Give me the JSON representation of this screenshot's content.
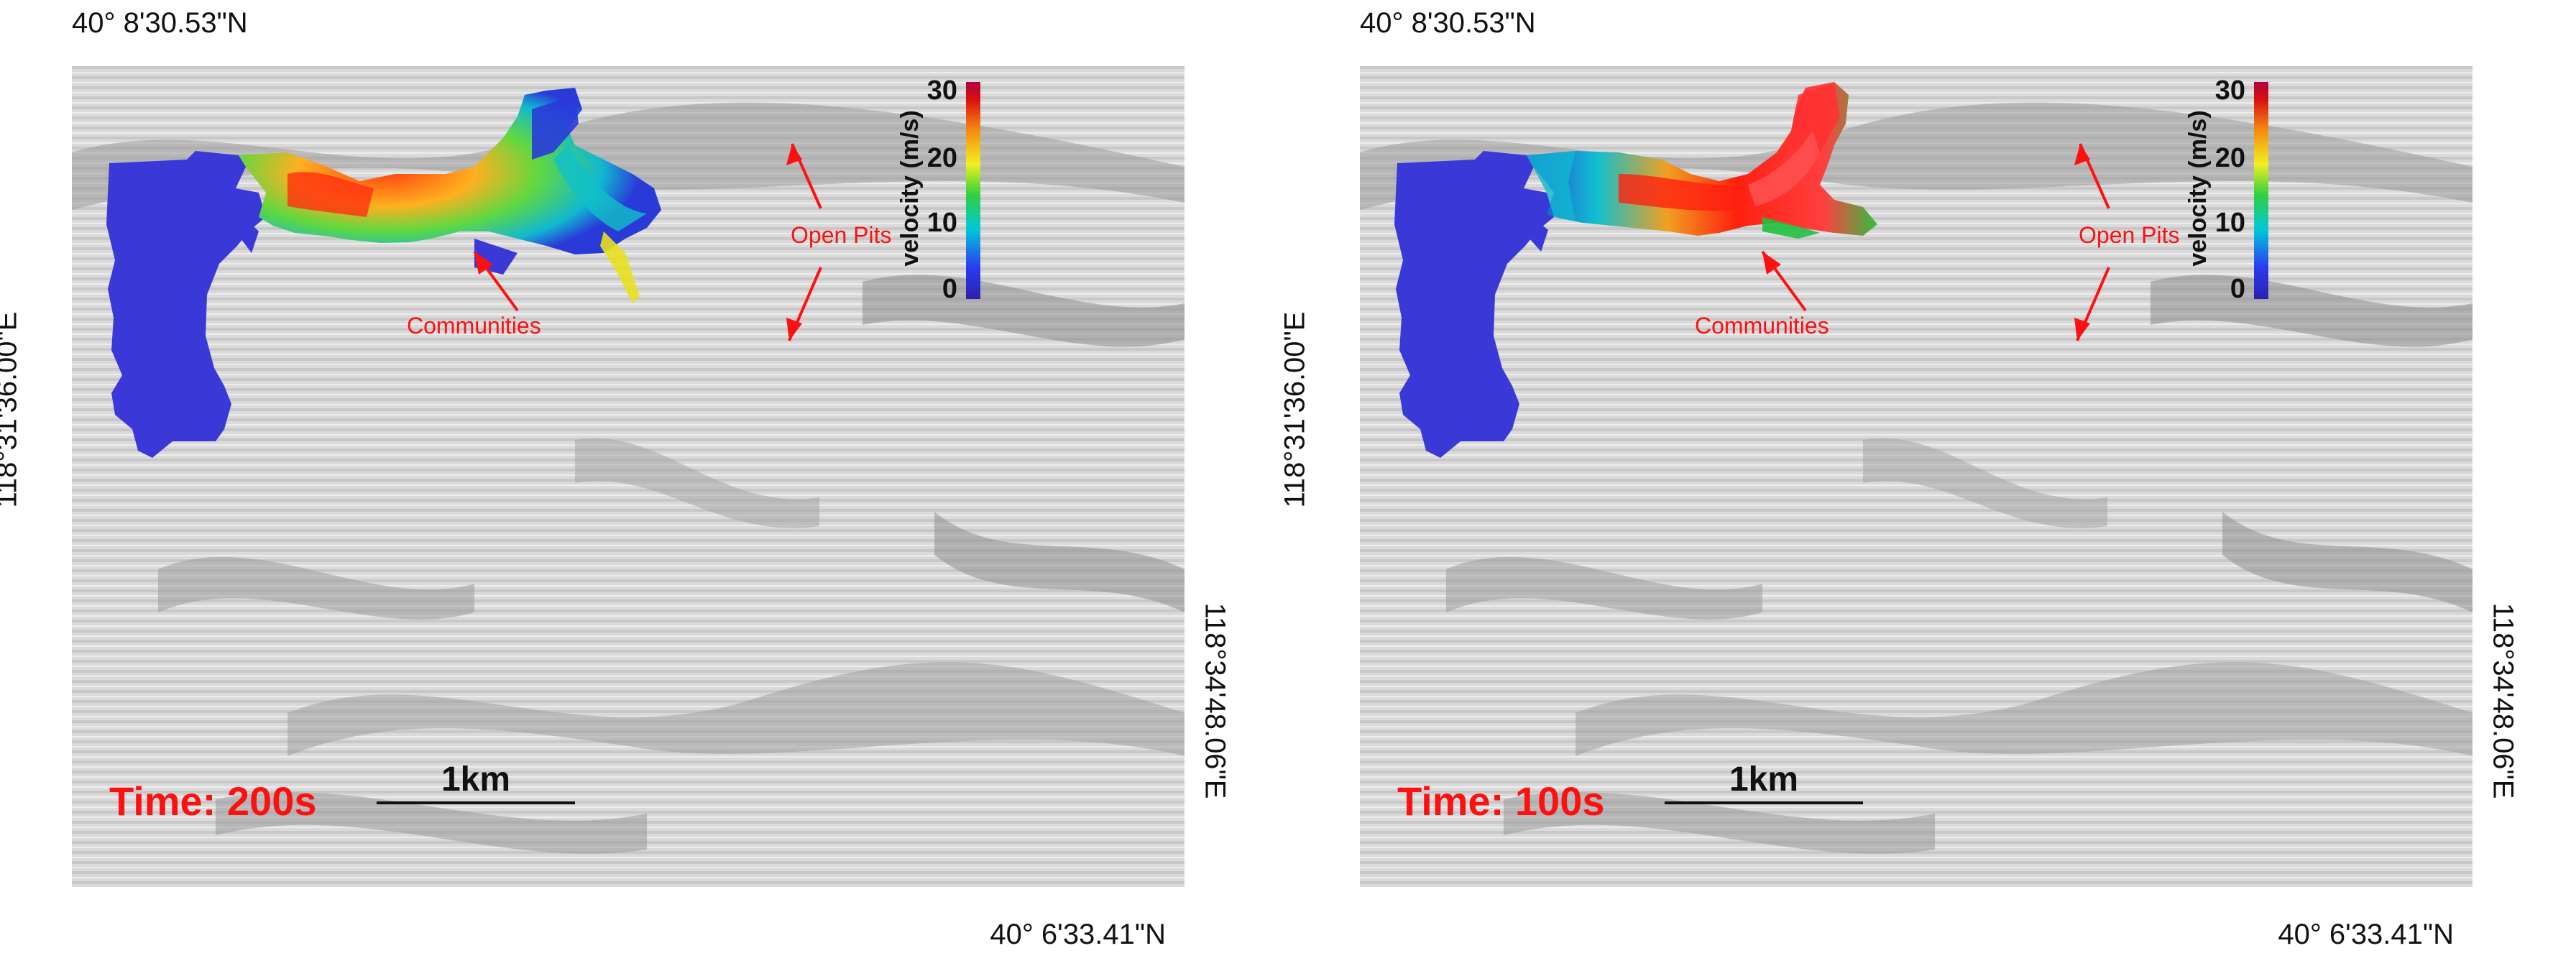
{
  "panels": [
    {
      "coord_top": "40° 8'30.53\"N",
      "coord_left": "118°31'36.00\"E",
      "coord_right": "118°34'48.06\"E",
      "coord_bottom": "40° 6'33.41\"N",
      "time_label": "Time: 200s",
      "scale_label": "1km",
      "legend_title": "velocity (m/s)",
      "legend_ticks": [
        "30",
        "20",
        "10",
        "0"
      ],
      "label_communities": "Communities",
      "label_open_pits": "Open Pits"
    },
    {
      "coord_top": "40° 8'30.53\"N",
      "coord_left": "118°31'36.00\"E",
      "coord_right": "118°34'48.06\"E",
      "coord_bottom": "40° 6'33.41\"N",
      "time_label": "Time: 100s",
      "scale_label": "1km",
      "legend_title": "velocity (m/s)",
      "legend_ticks": [
        "30",
        "20",
        "10",
        "0"
      ],
      "label_communities": "Communities",
      "label_open_pits": "Open Pits"
    }
  ],
  "colors": {
    "annotation": "#ff1010",
    "reservoir": "#3b38d8",
    "terrain": "#d7d7d7"
  }
}
